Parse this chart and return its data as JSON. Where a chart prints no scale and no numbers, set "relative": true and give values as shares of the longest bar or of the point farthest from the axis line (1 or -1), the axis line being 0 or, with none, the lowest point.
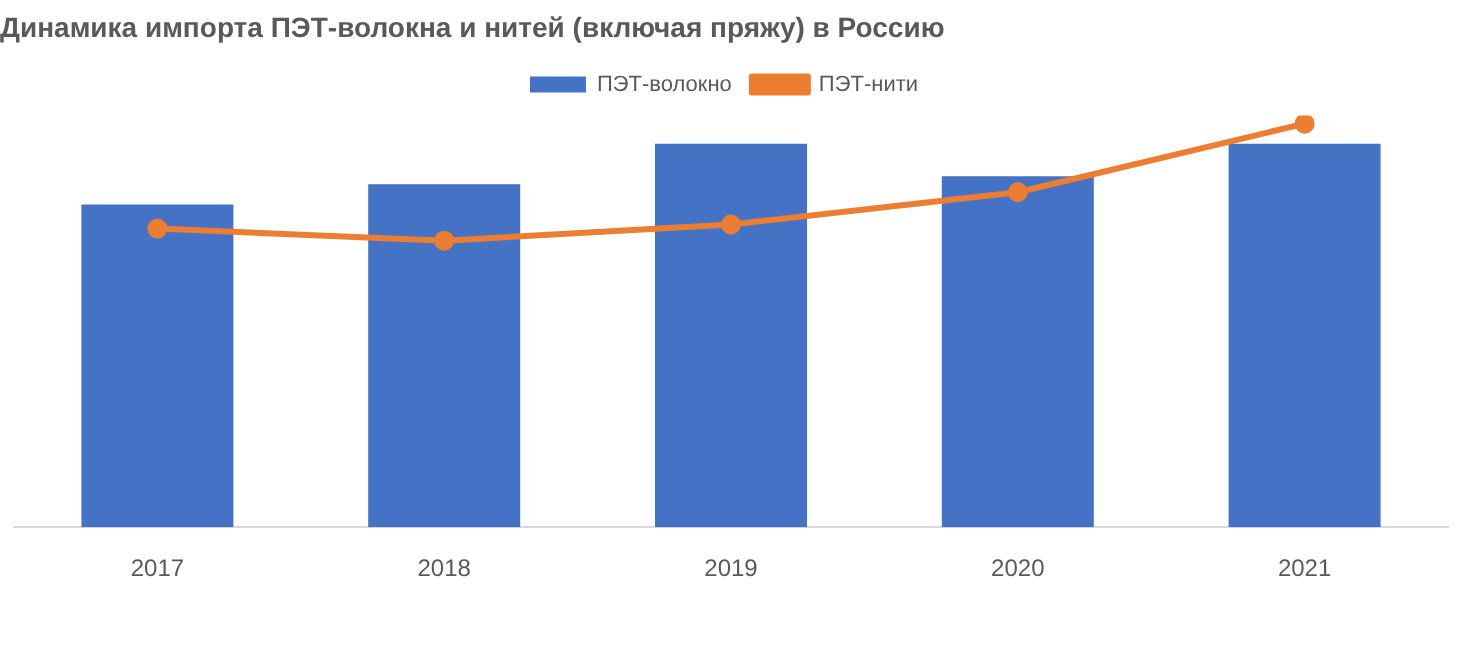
{
  "chart_data": {
    "type": "bar",
    "title": "Динамика импорта ПЭТ-волокна и нитей (включая пряжу) в Россию",
    "relative": true,
    "categories": [
      "2017",
      "2018",
      "2019",
      "2020",
      "2021"
    ],
    "series": [
      {
        "name": "ПЭТ-волокно",
        "color": "#4472c4",
        "values": [
          0.8,
          0.85,
          0.95,
          0.87,
          0.95
        ]
      },
      {
        "name": "ПЭТ-нити",
        "type": "line",
        "color": "#ed7d31",
        "values": [
          0.74,
          0.71,
          0.75,
          0.83,
          1
        ]
      }
    ],
    "legend": "top",
    "grid": false,
    "marker": "circle"
  }
}
